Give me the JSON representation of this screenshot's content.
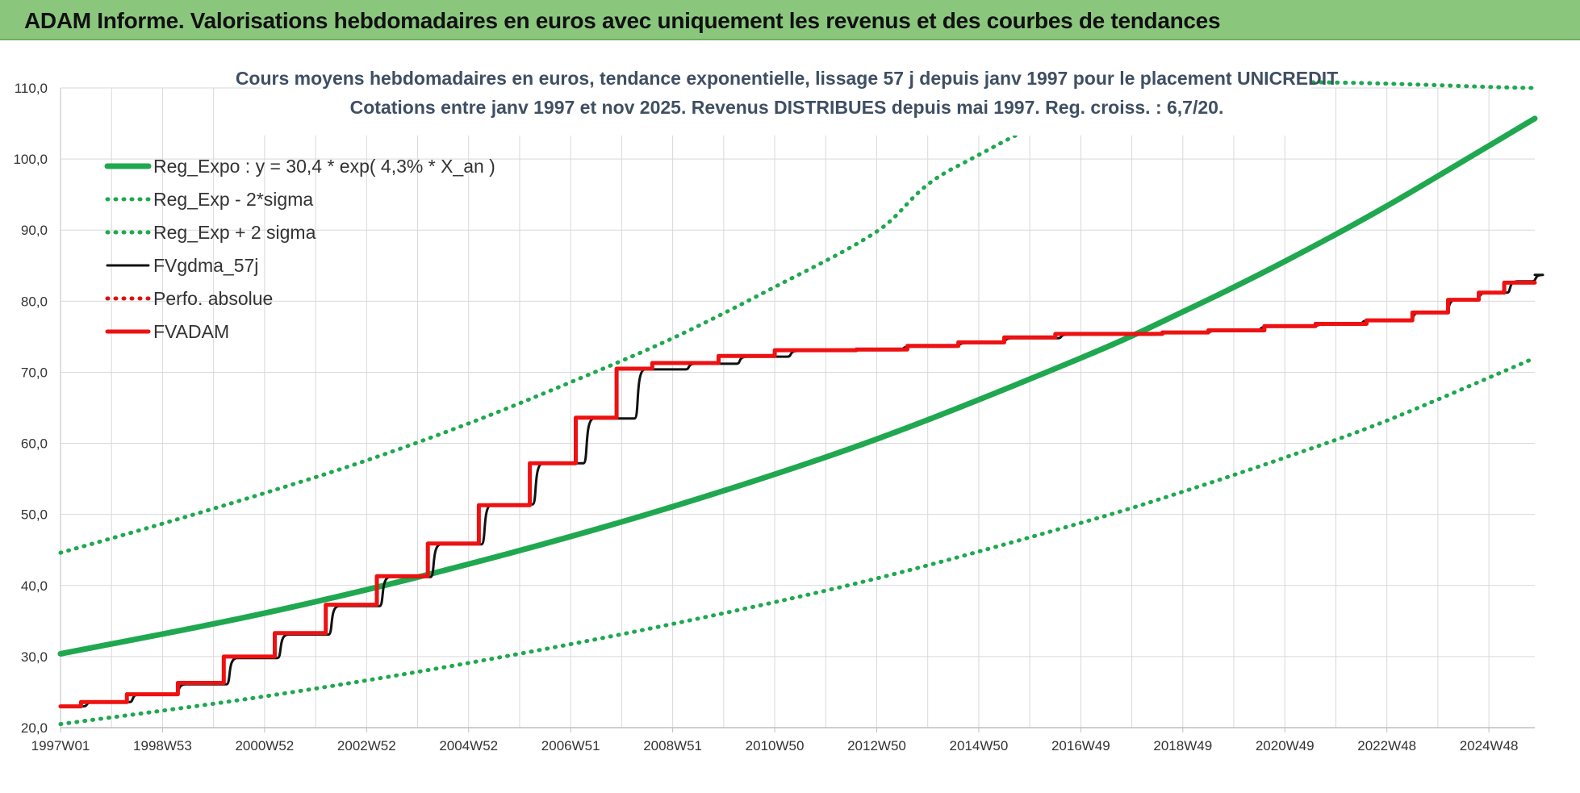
{
  "header": {
    "title": "ADAM Informe. Valorisations hebdomadaires en euros avec uniquement les revenus et des courbes de tendances"
  },
  "colors": {
    "header_bg": "#8ac77d",
    "trend": "#1fa84f",
    "price": "#111111",
    "adam": "#ee1111",
    "perf": "#dd1111",
    "grid": "#d9d9d9"
  },
  "chart_data": {
    "type": "line",
    "title_line1": "Cours moyens hebdomadaires en euros, tendance exponentielle, lissage 57 j depuis janv 1997 pour le placement UNICREDIT",
    "title_line2": "Cotations entre janv 1997 et nov 2025. Revenus DISTRIBUES depuis mai 1997. Reg. croiss. : 6,7/20.",
    "xlabel": "",
    "ylabel": "",
    "x_range_years": [
      1997.0,
      2025.9
    ],
    "ylim": [
      20,
      110
    ],
    "yticks": [
      "20,0",
      "30,0",
      "40,0",
      "50,0",
      "60,0",
      "70,0",
      "80,0",
      "90,0",
      "100,0",
      "110,0"
    ],
    "xticks": [
      "1997W01",
      "1998W53",
      "2000W52",
      "2002W52",
      "2004W52",
      "2006W51",
      "2008W51",
      "2010W50",
      "2012W50",
      "2014W50",
      "2016W49",
      "2018W49",
      "2020W49",
      "2022W48",
      "2024W48"
    ],
    "xtick_years": [
      1997.0,
      1999.0,
      2001.0,
      2003.0,
      2005.0,
      2007.0,
      2009.0,
      2011.0,
      2013.0,
      2015.0,
      2017.0,
      2019.0,
      2021.0,
      2023.0,
      2025.0
    ],
    "grid": true,
    "legend_position": "top-left",
    "series": [
      {
        "name": "Reg_Expo : y = 30,4 * exp( 4,3% *  X_an )",
        "style": "solid-thick",
        "color": "#1fa84f",
        "x": [
          1997.0,
          2001.0,
          2005.0,
          2009.0,
          2013.0,
          2017.0,
          2019.0,
          2021.0,
          2023.0,
          2025.9
        ],
        "y": [
          30.4,
          36.1,
          43.0,
          51.1,
          60.6,
          72.0,
          78.5,
          85.6,
          93.4,
          105.7
        ]
      },
      {
        "name": "Reg_Exp - 2*sigma",
        "style": "dotted",
        "color": "#1fa84f",
        "x": [
          1997.0,
          2001.0,
          2005.0,
          2009.0,
          2013.0,
          2017.0,
          2019.0,
          2021.0,
          2023.0,
          2025.9
        ],
        "y": [
          20.5,
          24.4,
          29.1,
          34.6,
          41.0,
          48.8,
          53.2,
          58.0,
          63.2,
          72.0
        ]
      },
      {
        "name": "Reg_Exp + 2 sigma",
        "style": "dotted",
        "color": "#1fa84f",
        "x": [
          1997.0,
          1999.0,
          2001.0,
          2003.0,
          2005.0,
          2007.0,
          2009.0,
          2011.0,
          2013.0,
          2014.58,
          2018.6,
          2025.9
        ],
        "y": [
          44.6,
          48.7,
          53.0,
          57.6,
          62.8,
          68.6,
          74.8,
          82.0,
          89.8,
          99.0,
          110.0,
          110.0
        ]
      },
      {
        "name": "FVgdma_57j",
        "style": "solid",
        "color": "#111111",
        "x": [
          1997.0,
          1997.5,
          1998.4,
          1999.3,
          2000.3,
          2001.3,
          2002.3,
          2003.3,
          2004.3,
          2005.3,
          2006.3,
          2007.3,
          2008.3,
          2009.3,
          2010.3,
          2011.3,
          2012.5,
          2013.5,
          2014.6,
          2015.5,
          2016.6,
          2018.5,
          2019.5,
          2020.5,
          2021.6,
          2022.5,
          2023.5,
          2024.2,
          2024.8,
          2025.4,
          2025.9
        ],
        "y": [
          23.0,
          23.6,
          24.7,
          26.1,
          29.8,
          33.1,
          37.1,
          41.2,
          45.8,
          51.4,
          57.2,
          63.5,
          70.4,
          71.2,
          72.2,
          73.0,
          73.1,
          73.6,
          74.1,
          74.8,
          75.3,
          75.5,
          75.8,
          76.4,
          76.7,
          77.3,
          78.4,
          80.2,
          81.2,
          82.8,
          83.7
        ]
      },
      {
        "name": "Perfo. absolue",
        "style": "dotted",
        "color": "#dd1111",
        "x": [],
        "y": []
      },
      {
        "name": "FVADAM",
        "style": "step-thick",
        "color": "#ee1111",
        "x": [
          1997.0,
          1997.4,
          1998.3,
          1999.3,
          2000.2,
          2001.2,
          2002.2,
          2003.2,
          2004.2,
          2005.2,
          2006.2,
          2007.1,
          2007.9,
          2008.6,
          2009.9,
          2011.0,
          2012.6,
          2013.6,
          2014.6,
          2015.5,
          2016.5,
          2018.6,
          2019.5,
          2020.6,
          2021.6,
          2022.6,
          2023.5,
          2024.2,
          2024.8,
          2025.3,
          2025.9
        ],
        "y": [
          23.0,
          23.6,
          24.7,
          26.3,
          30.0,
          33.3,
          37.3,
          41.3,
          45.9,
          51.3,
          57.2,
          63.6,
          70.5,
          71.3,
          72.3,
          73.1,
          73.2,
          73.7,
          74.2,
          74.9,
          75.4,
          75.6,
          75.9,
          76.5,
          76.8,
          77.3,
          78.4,
          80.2,
          81.2,
          82.6,
          82.6
        ]
      }
    ]
  }
}
